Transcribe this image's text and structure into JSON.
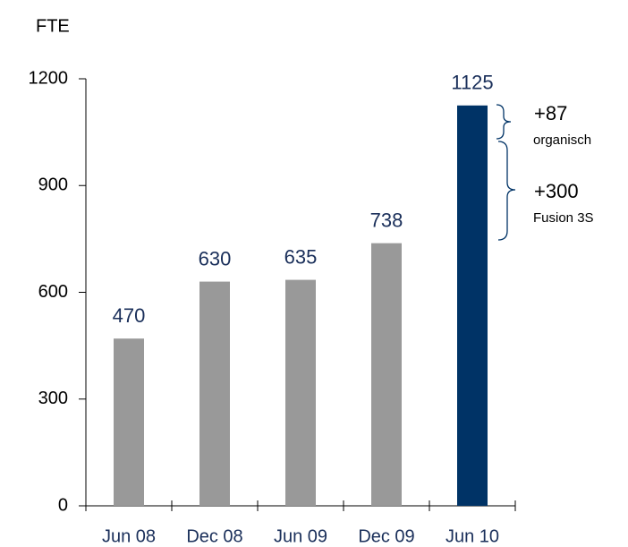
{
  "chart_data": {
    "type": "bar",
    "y_axis_label": "FTE",
    "categories": [
      "Jun 08",
      "Dec 08",
      "Jun 09",
      "Dec 09",
      "Jun 10"
    ],
    "values": [
      470,
      630,
      635,
      738,
      1125
    ],
    "colors": [
      "#999999",
      "#999999",
      "#999999",
      "#999999",
      "#003366"
    ],
    "ylim": [
      0,
      1200
    ],
    "yticks": [
      0,
      300,
      600,
      900,
      1200
    ],
    "grid": false,
    "annotations": [
      {
        "value_text": "+87",
        "text": "organisch"
      },
      {
        "value_text": "+300",
        "text": "Fusion 3S"
      }
    ]
  }
}
